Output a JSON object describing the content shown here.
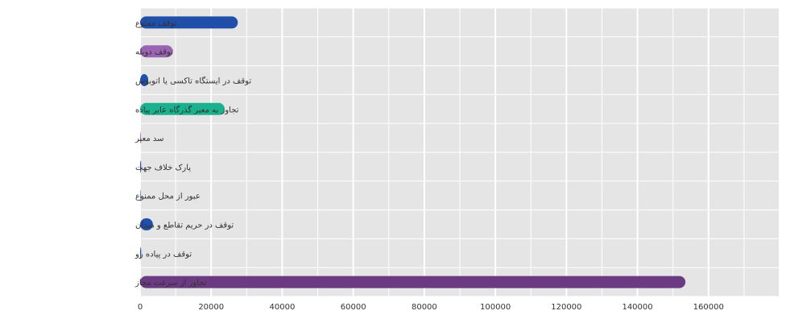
{
  "chart_data": {
    "type": "bar",
    "orientation": "horizontal",
    "categories": [
      "توقف ممنوع",
      "توقف دوبله",
      "توقف در ایستگاه تاکسی یا اتوبوس",
      "تجاوز به معبر گذرگاه عابر پیاده",
      "سد معبر",
      "پارک خلاف جهت",
      "عبور از محل ممنوع",
      "توقف در حریم تقاطع و میدان",
      "توقف در پیاده رو",
      "تجاوز از سرعت مجاز"
    ],
    "values": [
      27500,
      9200,
      2300,
      23800,
      200,
      300,
      150,
      3600,
      300,
      153500
    ],
    "colors": [
      "#1f4fa8",
      "#9a63b3",
      "#1f4fa8",
      "#1ab28e",
      "#9a63b3",
      "#1f4fa8",
      "#1f4fa8",
      "#1f4fa8",
      "#1f4fa8",
      "#6b3a82"
    ],
    "xlim": [
      0,
      180000
    ],
    "xticks": [
      0,
      20000,
      40000,
      60000,
      80000,
      100000,
      120000,
      140000,
      160000
    ],
    "xtick_labels": [
      "0",
      "20000",
      "40000",
      "60000",
      "80000",
      "100000",
      "120000",
      "140000",
      "160000"
    ],
    "grid": true,
    "title": "",
    "xlabel": "",
    "ylabel": ""
  }
}
